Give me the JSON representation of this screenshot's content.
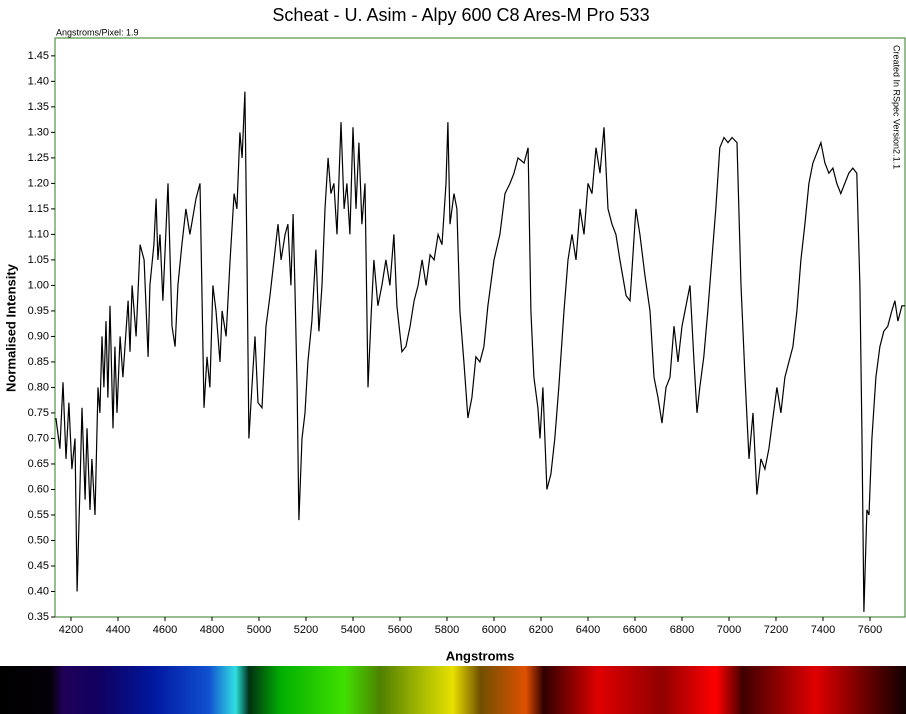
{
  "chart_data": {
    "type": "line",
    "title": "Scheat - U. Asim - Alpy 600 C8 Ares-M Pro 533",
    "subtitle": "Angstroms/Pixel: 1.9",
    "annotation": "Created In RSpec Version2.1.1",
    "x_label": "Angstroms",
    "y_label": "Normalised Intensity",
    "color": "#000000",
    "frame_color": "#2e7d1f",
    "x": [
      4136,
      4153,
      4166,
      4179,
      4191,
      4204,
      4217,
      4226,
      4238,
      4247,
      4260,
      4268,
      4281,
      4289,
      4302,
      4315,
      4323,
      4332,
      4340,
      4349,
      4357,
      4366,
      4379,
      4387,
      4396,
      4409,
      4421,
      4443,
      4451,
      4460,
      4477,
      4494,
      4511,
      4528,
      4536,
      4553,
      4562,
      4570,
      4579,
      4591,
      4613,
      4630,
      4643,
      4655,
      4672,
      4689,
      4706,
      4732,
      4749,
      4766,
      4779,
      4791,
      4804,
      4817,
      4834,
      4843,
      4860,
      4877,
      4894,
      4906,
      4919,
      4928,
      4940,
      4949,
      4957,
      4970,
      4983,
      4996,
      5013,
      5030,
      5047,
      5064,
      5081,
      5094,
      5111,
      5123,
      5136,
      5145,
      5153,
      5162,
      5170,
      5183,
      5196,
      5208,
      5225,
      5242,
      5255,
      5268,
      5281,
      5294,
      5306,
      5319,
      5332,
      5349,
      5362,
      5374,
      5387,
      5400,
      5413,
      5425,
      5438,
      5451,
      5464,
      5477,
      5489,
      5506,
      5523,
      5540,
      5557,
      5574,
      5587,
      5608,
      5625,
      5643,
      5660,
      5677,
      5694,
      5711,
      5728,
      5745,
      5762,
      5779,
      5796,
      5804,
      5813,
      5830,
      5842,
      5855,
      5872,
      5889,
      5906,
      5923,
      5940,
      5957,
      5974,
      6000,
      6025,
      6047,
      6068,
      6085,
      6102,
      6128,
      6145,
      6157,
      6170,
      6187,
      6196,
      6208,
      6225,
      6242,
      6259,
      6276,
      6298,
      6315,
      6332,
      6349,
      6366,
      6383,
      6400,
      6417,
      6434,
      6451,
      6468,
      6485,
      6502,
      6519,
      6536,
      6562,
      6579,
      6604,
      6621,
      6642,
      6664,
      6681,
      6698,
      6715,
      6732,
      6749,
      6766,
      6783,
      6800,
      6817,
      6834,
      6851,
      6864,
      6876,
      6893,
      6910,
      6927,
      6944,
      6961,
      6979,
      6996,
      7013,
      7034,
      7051,
      7068,
      7085,
      7102,
      7119,
      7136,
      7153,
      7170,
      7187,
      7204,
      7221,
      7238,
      7255,
      7272,
      7289,
      7306,
      7323,
      7340,
      7357,
      7374,
      7391,
      7408,
      7425,
      7442,
      7459,
      7476,
      7493,
      7510,
      7527,
      7544,
      7557,
      7566,
      7574,
      7587,
      7596,
      7608,
      7625,
      7642,
      7659,
      7676,
      7693,
      7706,
      7719,
      7736,
      7749
    ],
    "values": [
      0.74,
      0.68,
      0.81,
      0.66,
      0.77,
      0.64,
      0.7,
      0.4,
      0.6,
      0.76,
      0.58,
      0.72,
      0.56,
      0.66,
      0.55,
      0.8,
      0.75,
      0.9,
      0.8,
      0.93,
      0.78,
      0.96,
      0.72,
      0.88,
      0.75,
      0.9,
      0.82,
      0.97,
      0.87,
      1.0,
      0.9,
      1.08,
      1.05,
      0.86,
      1.0,
      1.08,
      1.17,
      1.05,
      1.1,
      0.97,
      1.2,
      0.92,
      0.88,
      1.0,
      1.08,
      1.15,
      1.1,
      1.17,
      1.2,
      0.76,
      0.86,
      0.8,
      1.0,
      0.95,
      0.85,
      0.95,
      0.9,
      1.05,
      1.18,
      1.15,
      1.3,
      1.25,
      1.38,
      1.05,
      0.7,
      0.8,
      0.9,
      0.77,
      0.76,
      0.92,
      0.98,
      1.05,
      1.12,
      1.05,
      1.1,
      1.12,
      1.0,
      1.14,
      1.0,
      0.8,
      0.54,
      0.7,
      0.75,
      0.85,
      0.93,
      1.07,
      0.91,
      1.0,
      1.15,
      1.25,
      1.18,
      1.2,
      1.1,
      1.32,
      1.15,
      1.2,
      1.1,
      1.31,
      1.15,
      1.28,
      1.12,
      1.2,
      0.8,
      0.94,
      1.05,
      0.96,
      1.0,
      1.05,
      1.0,
      1.1,
      0.96,
      0.87,
      0.88,
      0.92,
      0.97,
      1.0,
      1.05,
      1.0,
      1.06,
      1.05,
      1.1,
      1.08,
      1.2,
      1.32,
      1.12,
      1.18,
      1.15,
      0.95,
      0.85,
      0.74,
      0.78,
      0.86,
      0.85,
      0.88,
      0.96,
      1.05,
      1.1,
      1.18,
      1.2,
      1.22,
      1.25,
      1.24,
      1.27,
      0.95,
      0.82,
      0.76,
      0.7,
      0.8,
      0.6,
      0.63,
      0.7,
      0.8,
      0.95,
      1.05,
      1.1,
      1.05,
      1.15,
      1.1,
      1.2,
      1.18,
      1.27,
      1.22,
      1.31,
      1.15,
      1.12,
      1.1,
      1.05,
      0.98,
      0.97,
      1.15,
      1.1,
      1.02,
      0.95,
      0.82,
      0.78,
      0.73,
      0.8,
      0.82,
      0.92,
      0.85,
      0.92,
      0.96,
      1.0,
      0.85,
      0.75,
      0.8,
      0.86,
      0.95,
      1.05,
      1.15,
      1.27,
      1.29,
      1.28,
      1.29,
      1.28,
      1.0,
      0.82,
      0.66,
      0.75,
      0.59,
      0.66,
      0.64,
      0.68,
      0.74,
      0.8,
      0.75,
      0.82,
      0.85,
      0.88,
      0.95,
      1.05,
      1.12,
      1.2,
      1.24,
      1.26,
      1.28,
      1.24,
      1.22,
      1.23,
      1.2,
      1.18,
      1.2,
      1.22,
      1.23,
      1.22,
      1.0,
      0.7,
      0.36,
      0.56,
      0.55,
      0.7,
      0.82,
      0.88,
      0.91,
      0.92,
      0.95,
      0.97,
      0.93,
      0.96,
      0.96
    ],
    "xlim": [
      4132,
      7749
    ],
    "ylim": [
      0.35,
      1.485
    ],
    "xticks": [
      4200,
      4400,
      4600,
      4800,
      5000,
      5200,
      5400,
      5600,
      5800,
      6000,
      6200,
      6400,
      6600,
      6800,
      7000,
      7200,
      7400,
      7600
    ],
    "yticks": [
      0.35,
      {
        "value": 0.4,
        "label": "0.40"
      },
      0.45,
      {
        "value": 0.5,
        "label": "0.50"
      },
      0.55,
      {
        "value": 0.6,
        "label": "0.60"
      },
      0.65,
      {
        "value": 0.7,
        "label": "0.70"
      },
      0.75,
      {
        "value": 0.8,
        "label": "0.80"
      },
      0.85,
      {
        "value": 0.9,
        "label": "0.90"
      },
      0.95,
      {
        "value": 1.0,
        "label": "1.00"
      },
      1.05,
      {
        "value": 1.1,
        "label": "1.10"
      },
      1.15,
      {
        "value": 1.2,
        "label": "1.20"
      },
      1.25,
      {
        "value": 1.3,
        "label": "1.30"
      },
      1.35,
      {
        "value": 1.4,
        "label": "1.40"
      },
      1.45
    ]
  }
}
